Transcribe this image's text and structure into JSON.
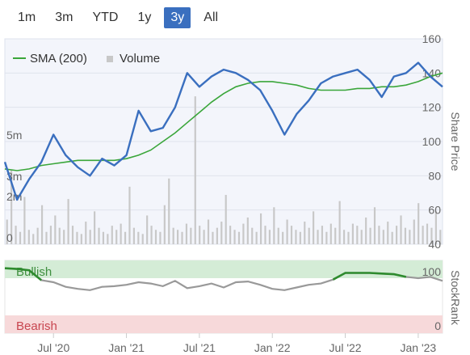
{
  "range_selector": {
    "options": [
      "1m",
      "3m",
      "YTD",
      "1y",
      "3y",
      "All"
    ],
    "selected": "3y"
  },
  "legend": {
    "sma_label": "SMA (200)",
    "volume_label": "Volume"
  },
  "colors": {
    "price_line": "#3a6fbf",
    "sma_line": "#3aa63a",
    "volume_bar": "#c8c8c8",
    "plot_bg": "#f3f5fb",
    "bullish_band": "#d4ecd6",
    "bearish_band": "#f7d9da",
    "rank_neutral": "#999999",
    "rank_bullish": "#2e8b2e",
    "active_button": "#3a6fbf"
  },
  "chart_data": {
    "type": "line",
    "title": "",
    "price_axis": {
      "label": "Share Price",
      "ticks": [
        40,
        60,
        80,
        100,
        120,
        140,
        160
      ],
      "range": [
        40,
        160
      ],
      "side": "right"
    },
    "volume_axis": {
      "ticks": [
        "0",
        "2m",
        "3m",
        "5m"
      ],
      "tick_values": [
        0,
        2,
        3,
        5
      ],
      "unit": "millions",
      "range": [
        0,
        10
      ]
    },
    "x_axis": {
      "ticks": [
        "Jul '20",
        "Jan '21",
        "Jul '21",
        "Jan '22",
        "Jul '22",
        "Jan '23"
      ],
      "range": [
        "2020-03",
        "2023-03"
      ]
    },
    "series": [
      {
        "name": "Share Price",
        "x": [
          "2020-03",
          "2020-04",
          "2020-05",
          "2020-06",
          "2020-07",
          "2020-08",
          "2020-09",
          "2020-10",
          "2020-11",
          "2020-12",
          "2021-01",
          "2021-02",
          "2021-03",
          "2021-04",
          "2021-05",
          "2021-06",
          "2021-07",
          "2021-08",
          "2021-09",
          "2021-10",
          "2021-11",
          "2021-12",
          "2022-01",
          "2022-02",
          "2022-03",
          "2022-04",
          "2022-05",
          "2022-06",
          "2022-07",
          "2022-08",
          "2022-09",
          "2022-10",
          "2022-11",
          "2022-12",
          "2023-01",
          "2023-02",
          "2023-03"
        ],
        "values": [
          88,
          66,
          78,
          88,
          104,
          92,
          85,
          80,
          90,
          86,
          92,
          118,
          106,
          108,
          120,
          140,
          132,
          138,
          142,
          140,
          136,
          130,
          118,
          104,
          116,
          124,
          134,
          138,
          140,
          142,
          136,
          126,
          138,
          140,
          146,
          138,
          132
        ]
      },
      {
        "name": "SMA (200)",
        "x": [
          "2020-03",
          "2020-04",
          "2020-05",
          "2020-06",
          "2020-07",
          "2020-08",
          "2020-09",
          "2020-10",
          "2020-11",
          "2020-12",
          "2021-01",
          "2021-02",
          "2021-03",
          "2021-04",
          "2021-05",
          "2021-06",
          "2021-07",
          "2021-08",
          "2021-09",
          "2021-10",
          "2021-11",
          "2021-12",
          "2022-01",
          "2022-02",
          "2022-03",
          "2022-04",
          "2022-05",
          "2022-06",
          "2022-07",
          "2022-08",
          "2022-09",
          "2022-10",
          "2022-11",
          "2022-12",
          "2023-01",
          "2023-02",
          "2023-03"
        ],
        "values": [
          84,
          83,
          84,
          86,
          87,
          88,
          89,
          89,
          89,
          89,
          90,
          92,
          95,
          100,
          105,
          111,
          117,
          123,
          128,
          132,
          134,
          135,
          135,
          134,
          133,
          131,
          130,
          130,
          130,
          131,
          131,
          132,
          132,
          133,
          135,
          138,
          140
        ]
      },
      {
        "name": "Volume",
        "x_range": [
          "2020-03",
          "2023-03"
        ],
        "values_millions": [
          1.2,
          3.6,
          0.9,
          0.6,
          2.3,
          0.7,
          0.5,
          0.8,
          1.9,
          0.6,
          0.9,
          1.4,
          0.8,
          0.7,
          2.2,
          0.9,
          0.6,
          0.5,
          1.1,
          0.7,
          1.6,
          0.8,
          0.6,
          0.5,
          0.9,
          0.7,
          1.0,
          0.6,
          2.8,
          0.8,
          0.6,
          0.5,
          1.4,
          0.9,
          0.7,
          0.6,
          1.9,
          3.2,
          0.8,
          0.7,
          0.6,
          1.0,
          0.8,
          7.2,
          0.9,
          0.7,
          1.2,
          0.6,
          0.8,
          1.1,
          2.4,
          0.9,
          0.7,
          0.6,
          1.0,
          1.3,
          0.8,
          0.6,
          1.5,
          0.9,
          0.7,
          1.8,
          0.8,
          0.6,
          1.2,
          0.9,
          0.7,
          0.6,
          1.1,
          0.8,
          1.6,
          0.7,
          0.9,
          0.6,
          1.0,
          0.8,
          2.1,
          0.7,
          0.6,
          1.0,
          0.9,
          0.7,
          1.3,
          0.8,
          1.8,
          0.9,
          0.7,
          1.1,
          0.6,
          0.9,
          1.4,
          0.8,
          0.7,
          1.2,
          2.0,
          0.9,
          1.0,
          0.8,
          1.6,
          0.7
        ]
      }
    ],
    "stockrank": {
      "label": "StockRank",
      "bands": [
        "Bullish",
        "Bearish"
      ],
      "axis_ticks": [
        100,
        0
      ],
      "range": [
        0,
        100
      ],
      "x": [
        "2020-03",
        "2020-04",
        "2020-05",
        "2020-06",
        "2020-07",
        "2020-08",
        "2020-09",
        "2020-10",
        "2020-11",
        "2020-12",
        "2021-01",
        "2021-02",
        "2021-03",
        "2021-04",
        "2021-05",
        "2021-06",
        "2021-07",
        "2021-08",
        "2021-09",
        "2021-10",
        "2021-11",
        "2021-12",
        "2022-01",
        "2022-02",
        "2022-03",
        "2022-04",
        "2022-05",
        "2022-06",
        "2022-07",
        "2022-08",
        "2022-09",
        "2022-10",
        "2022-11",
        "2022-12",
        "2023-01",
        "2023-02",
        "2023-03"
      ],
      "values": [
        93,
        92,
        90,
        75,
        72,
        65,
        62,
        60,
        65,
        66,
        68,
        72,
        70,
        66,
        74,
        63,
        66,
        70,
        64,
        72,
        73,
        68,
        62,
        60,
        64,
        68,
        70,
        76,
        86,
        86,
        86,
        85,
        84,
        80,
        78,
        80,
        74
      ],
      "bullish_segments": [
        [
          0,
          3
        ],
        [
          27,
          33
        ]
      ]
    }
  }
}
